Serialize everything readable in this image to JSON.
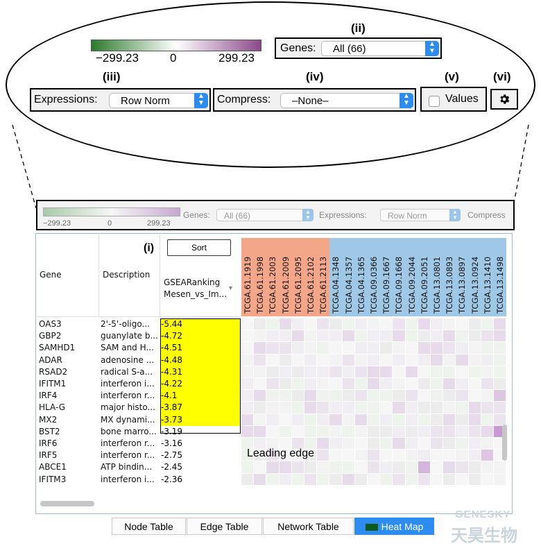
{
  "zoom": {
    "labels": {
      "i": "(i)",
      "ii": "(ii)",
      "iii": "(iii)",
      "iv": "(iv)",
      "v": "(v)",
      "vi": "(vi)"
    },
    "gradient": {
      "min": "−299.23",
      "mid": "0",
      "max": "299.23",
      "low_color": "#2e7a2e",
      "high_color": "#8a4a8a"
    },
    "genes_label": "Genes:",
    "genes_value": "All (66)",
    "expressions_label": "Expressions:",
    "expressions_value": "Row Norm",
    "compress_label": "Compress:",
    "compress_value": "–None–",
    "values_label": "Values",
    "settings_icon": "gear-icon"
  },
  "toolbar": {
    "gradient_min": "−299.23",
    "gradient_mid": "0",
    "gradient_max": "299.23",
    "genes_label": "Genes:",
    "genes_value": "All (66)",
    "expressions_label": "Expressions:",
    "expressions_value": "Row Norm",
    "compress_label": "Compress"
  },
  "table": {
    "col_gene": "Gene",
    "col_description": "Description",
    "sort_label": "Sort",
    "ranking_header_1": "GSEARanking",
    "ranking_header_2": "Mesen_vs_Im...",
    "samples_red": [
      "TCGA.61.1919",
      "TCGA.61.1998",
      "TCGA.61.2003",
      "TCGA.61.2009",
      "TCGA.61.2095",
      "TCGA.61.2102",
      "TCGA.61.2113"
    ],
    "samples_blue": [
      "TCGA.04.1348",
      "TCGA.04.1357",
      "TCGA.04.1365",
      "TCGA.09.0366",
      "TCGA.09.1667",
      "TCGA.09.1668",
      "TCGA.09.2044",
      "TCGA.09.2051",
      "TCGA.13.0801",
      "TCGA.13.0893",
      "TCGA.13.0897",
      "TCGA.13.0924",
      "TCGA.13.1410",
      "TCGA.13.1498"
    ],
    "sample_red_color": "#f4a689",
    "sample_blue_color": "#9fc7e6",
    "highlight_color": "#ffff00",
    "rows": [
      {
        "gene": "OAS3",
        "desc": "2'-5'-oligo...",
        "rank": "-5.44"
      },
      {
        "gene": "GBP2",
        "desc": "guanylate b...",
        "rank": "-4.72"
      },
      {
        "gene": "SAMHD1",
        "desc": "SAM and H...",
        "rank": "-4.51"
      },
      {
        "gene": "ADAR",
        "desc": "adenosine ...",
        "rank": "-4.48"
      },
      {
        "gene": "RSAD2",
        "desc": "radical S-a...",
        "rank": "-4.31"
      },
      {
        "gene": "IFITM1",
        "desc": "interferon i...",
        "rank": "-4.22"
      },
      {
        "gene": "IRF4",
        "desc": "interferon r...",
        "rank": "-4.1"
      },
      {
        "gene": "HLA-G",
        "desc": "major histo...",
        "rank": "-3.87"
      },
      {
        "gene": "MX2",
        "desc": "MX dynami...",
        "rank": "-3.73"
      },
      {
        "gene": "BST2",
        "desc": "bone marro...",
        "rank": "-3.19"
      },
      {
        "gene": "IRF6",
        "desc": "interferon r...",
        "rank": "-3.16"
      },
      {
        "gene": "IRF5",
        "desc": "interferon r...",
        "rank": "-2.75"
      },
      {
        "gene": "ABCE1",
        "desc": "ATP bindin...",
        "rank": "-2.45"
      },
      {
        "gene": "IFITM3",
        "desc": "interferon i...",
        "rank": "-2.36"
      }
    ],
    "leading_edge_count": 9
  },
  "annotation": {
    "leading_edge": "Leading edge"
  },
  "tabs": [
    "Node Table",
    "Edge Table",
    "Network Table",
    "Heat Map"
  ],
  "active_tab": "Heat Map",
  "heatmap_tab_icon": "heatmap-icon",
  "watermark": {
    "latin": "GENESKY",
    "cjk": "天昊生物"
  }
}
